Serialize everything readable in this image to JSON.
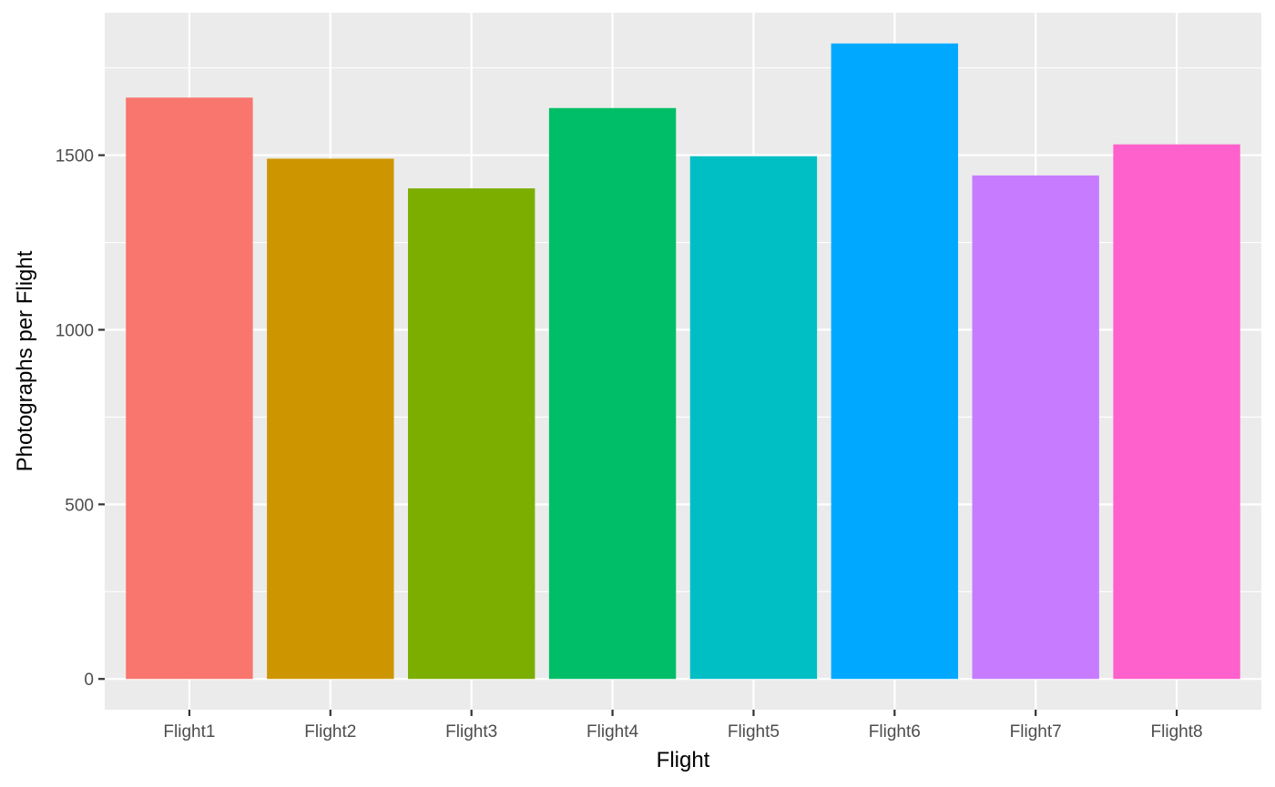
{
  "chart_data": {
    "type": "bar",
    "xlabel": "Flight",
    "ylabel": "Photographs per Flight",
    "categories": [
      "Flight1",
      "Flight2",
      "Flight3",
      "Flight4",
      "Flight5",
      "Flight6",
      "Flight7",
      "Flight8"
    ],
    "values": [
      1665,
      1490,
      1405,
      1635,
      1497,
      1820,
      1442,
      1531
    ],
    "colors": [
      "#F8766D",
      "#CD9600",
      "#7CAE00",
      "#00BE67",
      "#00BFC4",
      "#00A9FF",
      "#C77CFF",
      "#FF61CC"
    ],
    "yticks": [
      0,
      500,
      1000,
      1500
    ],
    "ylim": [
      -88,
      1908
    ],
    "grid": true,
    "legend": "none",
    "panel_background": "#EBEBEB",
    "gridline_color": "#FFFFFF"
  }
}
